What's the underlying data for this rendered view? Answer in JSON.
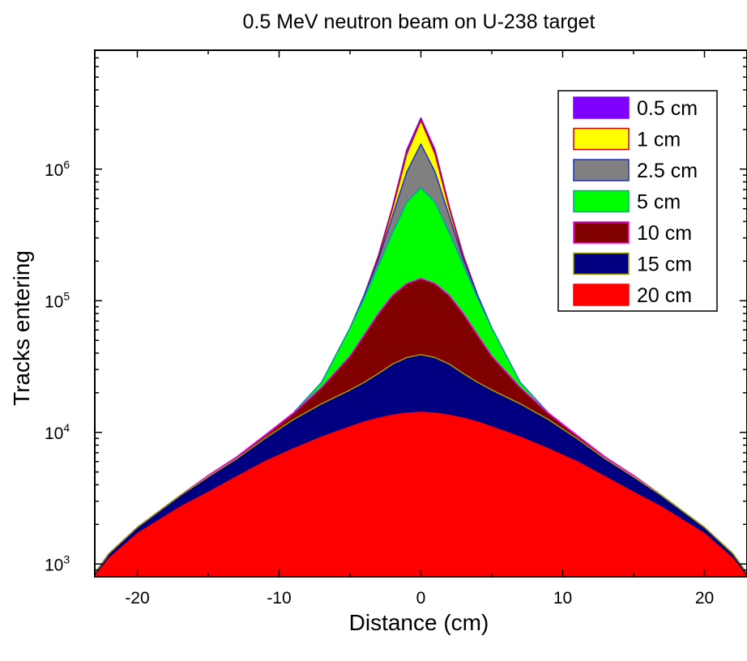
{
  "chart_data": {
    "type": "area",
    "title": "0.5 MeV neutron beam on U-238 target",
    "xlabel": "Distance (cm)",
    "ylabel": "Tracks entering",
    "xlim": [
      -23,
      23
    ],
    "ylim": [
      800,
      8000000
    ],
    "yscale": "log",
    "x_ticks": [
      -20,
      -10,
      0,
      10,
      20
    ],
    "x_tick_labels": [
      "-20",
      "-10",
      "0",
      "10",
      "20"
    ],
    "y_ticks": [
      1000,
      10000,
      100000,
      1000000
    ],
    "y_tick_base": "10",
    "y_tick_exponents": [
      "3",
      "4",
      "5",
      "6"
    ],
    "legend_position": "top-right",
    "x": [
      -23,
      -22,
      -20,
      -17,
      -15,
      -13,
      -11,
      -9,
      -7,
      -5,
      -4,
      -3,
      -2,
      -1,
      0,
      1,
      2,
      3,
      4,
      5,
      7,
      9,
      11,
      13,
      15,
      17,
      20,
      22,
      23
    ],
    "series": [
      {
        "name": "0.5 cm",
        "color": "#8000ff",
        "stroke": "#8000ff",
        "values": [
          850,
          1200,
          1900,
          3300,
          4700,
          6500,
          9500,
          14000,
          24000,
          62000,
          110000,
          220000,
          520000,
          1400000,
          2450000,
          1400000,
          520000,
          220000,
          110000,
          62000,
          24000,
          14000,
          9500,
          6500,
          4700,
          3300,
          1900,
          1200,
          850
        ]
      },
      {
        "name": "1 cm",
        "color": "#ffff00",
        "stroke": "#d00000",
        "values": [
          850,
          1200,
          1900,
          3300,
          4700,
          6500,
          9500,
          14000,
          24000,
          62000,
          110000,
          215000,
          500000,
          1300000,
          2350000,
          1300000,
          500000,
          215000,
          110000,
          62000,
          24000,
          14000,
          9500,
          6500,
          4700,
          3300,
          1900,
          1200,
          850
        ]
      },
      {
        "name": "2.5 cm",
        "color": "#808080",
        "stroke": "#2030c0",
        "values": [
          850,
          1200,
          1900,
          3300,
          4700,
          6500,
          9500,
          14000,
          24000,
          62000,
          110000,
          205000,
          440000,
          950000,
          1550000,
          950000,
          440000,
          205000,
          110000,
          62000,
          24000,
          14000,
          9500,
          6500,
          4700,
          3300,
          1900,
          1200,
          850
        ]
      },
      {
        "name": "5 cm",
        "color": "#00ff00",
        "stroke": "#00a0a0",
        "values": [
          850,
          1200,
          1900,
          3300,
          4700,
          6500,
          9500,
          14000,
          24000,
          62000,
          105000,
          185000,
          330000,
          560000,
          720000,
          560000,
          330000,
          185000,
          105000,
          62000,
          24000,
          14000,
          9500,
          6500,
          4700,
          3300,
          1900,
          1200,
          850
        ]
      },
      {
        "name": "10 cm",
        "color": "#800000",
        "stroke": "#ff00ff",
        "values": [
          850,
          1200,
          1900,
          3300,
          4700,
          6500,
          9500,
          14000,
          22000,
          38000,
          55000,
          80000,
          110000,
          135000,
          148000,
          135000,
          110000,
          80000,
          55000,
          38000,
          22000,
          14000,
          9500,
          6500,
          4700,
          3300,
          1900,
          1200,
          850
        ]
      },
      {
        "name": "15 cm",
        "color": "#000080",
        "stroke": "#a0a000",
        "values": [
          850,
          1200,
          1900,
          3300,
          4600,
          6300,
          9000,
          12500,
          16500,
          21000,
          24000,
          28000,
          33000,
          37000,
          39000,
          37000,
          33000,
          28000,
          24000,
          21000,
          16500,
          12500,
          9000,
          6300,
          4600,
          3300,
          1900,
          1200,
          850
        ]
      },
      {
        "name": "20 cm",
        "color": "#ff0000",
        "stroke": "#ff0000",
        "values": [
          800,
          1100,
          1700,
          2700,
          3500,
          4600,
          6000,
          7500,
          9200,
          11000,
          12000,
          12800,
          13500,
          14000,
          14200,
          14000,
          13500,
          12800,
          12000,
          11000,
          9200,
          7500,
          6000,
          4600,
          3500,
          2700,
          1700,
          1100,
          800
        ]
      }
    ]
  }
}
